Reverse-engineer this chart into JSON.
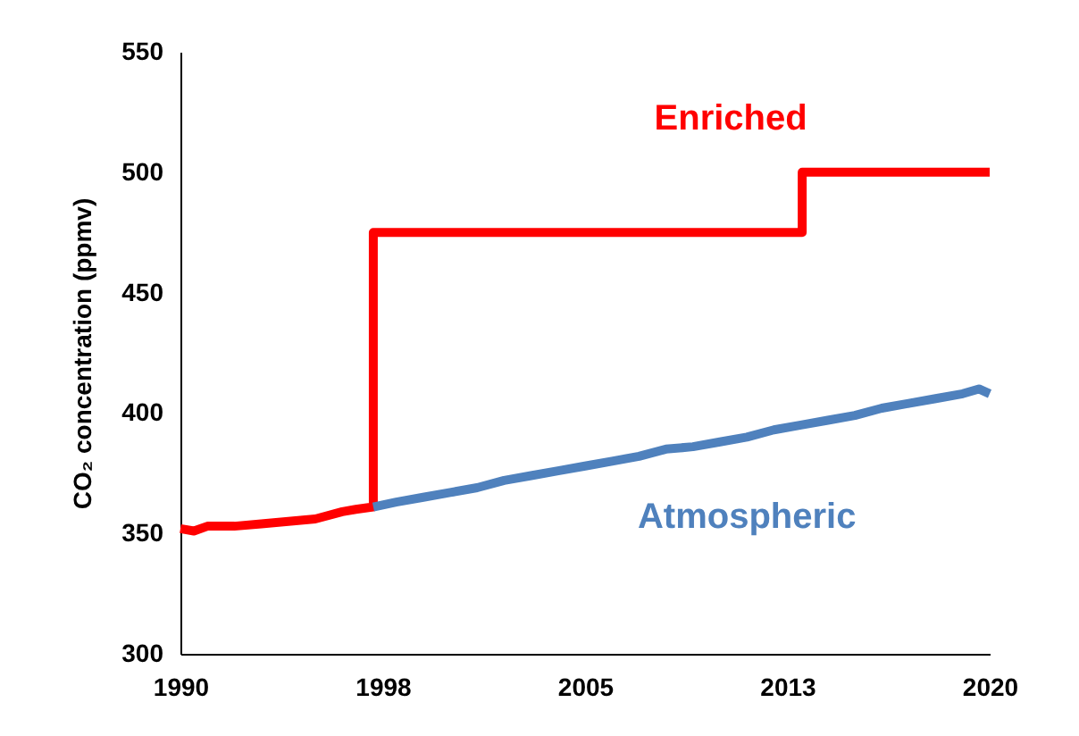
{
  "chart_data": {
    "type": "line",
    "ylabel": "CO₂ concentration (ppmv)",
    "xlim": [
      1990,
      2020
    ],
    "xticks": [
      1990,
      {
        "value": 1997.5,
        "label": "1998"
      },
      2005,
      {
        "value": 2012.5,
        "label": "2013"
      },
      2020
    ],
    "ylim": [
      300,
      550
    ],
    "yticks": [
      300,
      350,
      400,
      450,
      500,
      550
    ],
    "grid": false,
    "marker": "none",
    "line_style": "solid",
    "series": [
      {
        "name": "Enriched",
        "color": "#ff0000",
        "x": [
          1990,
          1990.5,
          1991,
          1992,
          1993,
          1994,
          1995,
          1996,
          1996.5,
          1997.15,
          1997.15,
          2013.05,
          2013.05,
          2020
        ],
        "values": [
          352,
          351,
          353,
          353,
          354,
          355,
          356,
          359,
          360,
          361,
          475,
          475,
          500,
          500
        ]
      },
      {
        "name": "Atmospheric",
        "color": "#4f81bd",
        "x": [
          1997.15,
          1998,
          1999,
          2000,
          2001,
          2002,
          2003,
          2004,
          2005,
          2006,
          2007,
          2008,
          2009,
          2010,
          2011,
          2012,
          2013,
          2014,
          2015,
          2016,
          2017,
          2018,
          2019,
          2019.6,
          2020
        ],
        "values": [
          361,
          363,
          365,
          367,
          369,
          372,
          374,
          376,
          378,
          380,
          382,
          385,
          386,
          388,
          390,
          393,
          395,
          397,
          399,
          402,
          404,
          406,
          408,
          410,
          408
        ]
      }
    ]
  }
}
